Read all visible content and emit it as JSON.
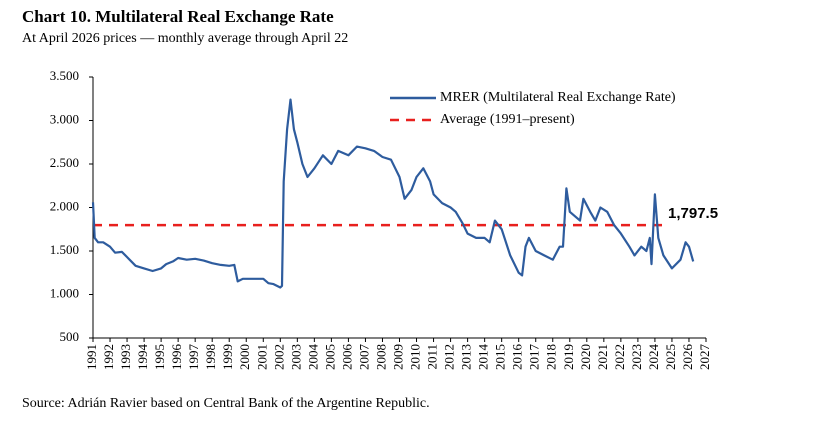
{
  "chart_data": {
    "type": "line",
    "title": "Chart 10. Multilateral Real Exchange Rate",
    "subtitle": "At April 2026 prices — monthly average through April 22",
    "source": "Source: Adrián Ravier based on Central Bank of the Argentine Republic.",
    "x": [
      1991.0,
      1991.1,
      1991.3,
      1991.6,
      1992.0,
      1992.3,
      1992.7,
      1993.0,
      1993.5,
      1994.0,
      1994.5,
      1995.0,
      1995.3,
      1995.7,
      1996.0,
      1996.5,
      1997.0,
      1997.5,
      1998.0,
      1998.5,
      1999.0,
      1999.3,
      1999.5,
      1999.8,
      2000.5,
      2001.0,
      2001.3,
      2001.6,
      2002.0,
      2002.1,
      2002.2,
      2002.4,
      2002.6,
      2002.8,
      2003.0,
      2003.3,
      2003.6,
      2004.0,
      2004.5,
      2005.0,
      2005.4,
      2006.0,
      2006.5,
      2007.0,
      2007.5,
      2008.0,
      2008.5,
      2009.0,
      2009.3,
      2009.7,
      2010.0,
      2010.4,
      2010.8,
      2011.0,
      2011.5,
      2012.0,
      2012.3,
      2012.7,
      2013.0,
      2013.5,
      2014.0,
      2014.3,
      2014.6,
      2015.0,
      2015.5,
      2016.0,
      2016.2,
      2016.4,
      2016.6,
      2017.0,
      2017.5,
      2018.0,
      2018.4,
      2018.6,
      2018.8,
      2019.0,
      2019.3,
      2019.6,
      2019.8,
      2020.2,
      2020.5,
      2020.8,
      2021.2,
      2021.6,
      2022.0,
      2022.5,
      2022.8,
      2023.2,
      2023.5,
      2023.7,
      2023.8,
      2024.0,
      2024.2,
      2024.5,
      2025.0,
      2025.5,
      2025.8,
      2026.0,
      2026.25
    ],
    "series": [
      {
        "name": "MRER (Multilateral Real Exchange Rate)",
        "color": "#2e5c9e",
        "values": [
          2060,
          1650,
          1600,
          1600,
          1550,
          1480,
          1490,
          1430,
          1330,
          1300,
          1270,
          1300,
          1350,
          1380,
          1420,
          1400,
          1410,
          1390,
          1360,
          1340,
          1330,
          1340,
          1150,
          1180,
          1180,
          1180,
          1130,
          1120,
          1080,
          1100,
          2300,
          2900,
          3240,
          2900,
          2750,
          2500,
          2350,
          2450,
          2600,
          2500,
          2650,
          2600,
          2700,
          2680,
          2650,
          2580,
          2550,
          2350,
          2100,
          2200,
          2350,
          2450,
          2300,
          2150,
          2050,
          2000,
          1950,
          1820,
          1700,
          1650,
          1650,
          1600,
          1850,
          1750,
          1450,
          1250,
          1220,
          1550,
          1650,
          1500,
          1450,
          1400,
          1550,
          1550,
          2220,
          1950,
          1900,
          1850,
          2100,
          1950,
          1850,
          2000,
          1950,
          1800,
          1700,
          1550,
          1450,
          1550,
          1500,
          1650,
          1350,
          2150,
          1650,
          1450,
          1300,
          1400,
          1600,
          1550,
          1380
        ]
      }
    ],
    "reference_line": {
      "name": "Average (1991–present)",
      "value": 1797.5,
      "label": "1,797.5",
      "color": "#e8201e"
    },
    "xlim": [
      1991,
      2027
    ],
    "xticks": [
      1991,
      1992,
      1993,
      1994,
      1995,
      1996,
      1997,
      1998,
      1999,
      2000,
      2001,
      2002,
      2003,
      2004,
      2005,
      2006,
      2007,
      2008,
      2009,
      2010,
      2011,
      2012,
      2013,
      2014,
      2015,
      2016,
      2017,
      2018,
      2019,
      2020,
      2021,
      2022,
      2023,
      2024,
      2025,
      2026,
      2027
    ],
    "ylim": [
      500,
      3500
    ],
    "yticks": [
      500,
      {
        "value": 1000,
        "label": "1.000"
      },
      {
        "value": 1500,
        "label": "1.500"
      },
      {
        "value": 2000,
        "label": "2.000"
      },
      {
        "value": 2500,
        "label": "2.500"
      },
      {
        "value": 3000,
        "label": "3.000"
      },
      {
        "value": 3500,
        "label": "3.500"
      }
    ]
  }
}
